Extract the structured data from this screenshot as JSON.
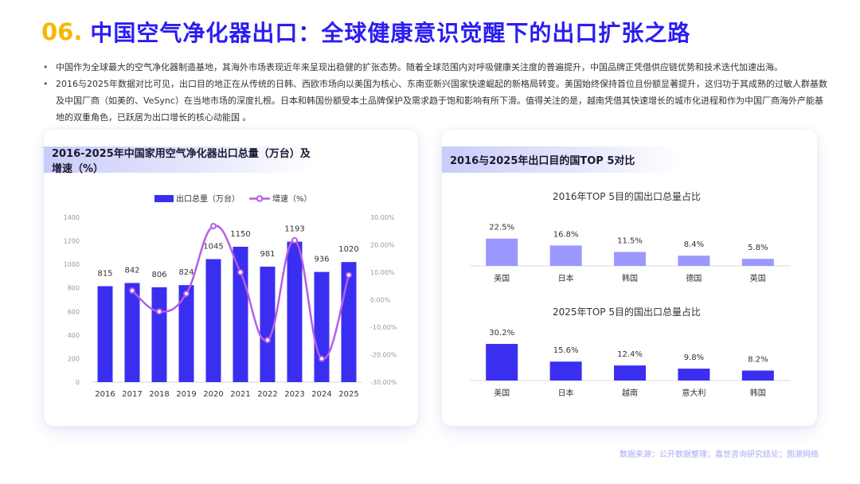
{
  "header": {
    "number": "06.",
    "title": "中国空气净化器出口：全球健康意识觉醒下的出口扩张之路"
  },
  "bullets": [
    "中国作为全球最大的空气净化器制造基地，其海外市场表现近年来呈现出稳健的扩张态势。随着全球范围内对呼吸健康关注度的普遍提升，中国品牌正凭借供应链优势和技术迭代加速出海。",
    "2016与2025年数据对比可见，出口目的地正在从传统的日韩、西欧市场向以美国为核心、东南亚新兴国家快速崛起的新格局转变。美国始终保持首位且份额显著提升，这归功于其成熟的过敏人群基数及中国厂商（如美的、VeSync）在当地市场的深度扎根。日本和韩国份额受本土品牌保护及需求趋于饱和影响有所下滑。值得关注的是，越南凭借其快速增长的城市化进程和作为中国厂商海外产能基地的双重角色，已跃居为出口增长的核心动能国 。"
  ],
  "left_card": {
    "title": "2016-2025年中国家用空气净化器出口总量（万台）及增速（%）"
  },
  "right_card": {
    "title": "2016与2025年出口目的国TOP 5对比"
  },
  "colors": {
    "bar_blue": "#3a2ff0",
    "line_purple": "#b45ee8",
    "bar_light": "#9b99ff",
    "bar_dark": "#3a2ff0"
  },
  "chart_data": [
    {
      "type": "bar+line",
      "categories": [
        "2016",
        "2017",
        "2018",
        "2019",
        "2020",
        "2021",
        "2022",
        "2023",
        "2024",
        "2025"
      ],
      "series": [
        {
          "name": "出口总量（万台）",
          "type": "bar",
          "values": [
            815,
            842,
            806,
            824,
            1045,
            1150,
            981,
            1193,
            936,
            1020
          ]
        },
        {
          "name": "增速（%）",
          "type": "line",
          "values": [
            null,
            3.3,
            -4.3,
            2.2,
            26.8,
            10.0,
            -14.7,
            21.6,
            -21.5,
            9.0
          ]
        }
      ],
      "y_left": {
        "ylim": [
          0,
          1400
        ],
        "ticks": [
          "0",
          "200",
          "400",
          "600",
          "800",
          "1000",
          "1200",
          "1400"
        ]
      },
      "y_right": {
        "ylim": [
          -30,
          30
        ],
        "ticks": [
          "-30.00%",
          "-20.00%",
          "-10.00%",
          "0.00%",
          "10.00%",
          "20.00%",
          "30.00%"
        ]
      },
      "value_labels": [
        "815",
        "842",
        "806",
        "824",
        "1045",
        "1150",
        "981",
        "1193",
        "936",
        "1020"
      ],
      "legend": {
        "placement": "top",
        "bar_label": "出口总量（万台）",
        "line_label": "增速（%）"
      },
      "grid": false
    },
    {
      "type": "bar",
      "title": "2016年TOP 5目的国出口总量占比",
      "categories": [
        "美国",
        "日本",
        "韩国",
        "德国",
        "英国"
      ],
      "values": [
        22.5,
        16.8,
        11.5,
        8.4,
        5.8
      ],
      "value_labels": [
        "22.5%",
        "16.8%",
        "11.5%",
        "8.4%",
        "5.8%"
      ],
      "ylim": [
        0,
        30.2
      ]
    },
    {
      "type": "bar",
      "title": "2025年TOP 5目的国出口总量占比",
      "categories": [
        "美国",
        "日本",
        "越南",
        "意大利",
        "韩国"
      ],
      "values": [
        30.2,
        15.6,
        12.4,
        9.8,
        8.2
      ],
      "value_labels": [
        "30.2%",
        "15.6%",
        "12.4%",
        "9.8%",
        "8.2%"
      ],
      "ylim": [
        0,
        30.2
      ]
    }
  ],
  "footer": {
    "source": "数据来源：公开数据整理；嘉世咨询研究结论；图源网络"
  }
}
